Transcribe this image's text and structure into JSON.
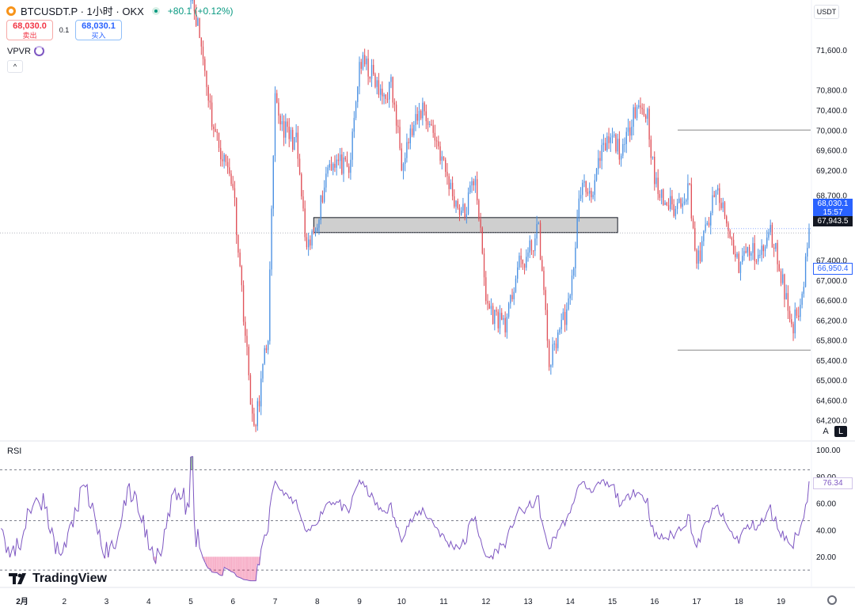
{
  "header": {
    "symbol": "BTCUSDT.P · 1小时 · OKX",
    "change": "+80.1 (+0.12%)",
    "sell": {
      "price": "68,030.0",
      "label": "卖出"
    },
    "spread": "0.1",
    "buy": {
      "price": "68,030.1",
      "label": "买入"
    },
    "indicator": "VPVR",
    "currency": "USDT"
  },
  "controls": {
    "collapse": "^",
    "auto": "A",
    "log": "L"
  },
  "rsi_panel": {
    "title": "RSI"
  },
  "branding": {
    "name": "TradingView"
  },
  "colors": {
    "up": "#4a90e2",
    "down": "#e0525a",
    "rsi_line": "#7e57c2"
  },
  "tags": {
    "last_price": "68,030.1",
    "countdown": "15:57",
    "crosshair": "67,943.5",
    "vp_line": "66,950.4",
    "rsi_value": "76.34"
  },
  "chart_data": [
    {
      "type": "candlestick",
      "title": "BTCUSDT.P · 1小时 · OKX",
      "x_tick_labels": [
        "2月",
        "2",
        "3",
        "4",
        "5",
        "6",
        "7",
        "8",
        "9",
        "10",
        "11",
        "12",
        "13",
        "14",
        "15",
        "16",
        "17",
        "18",
        "19"
      ],
      "ylim": [
        63800,
        72600
      ],
      "y_tick_labels": [
        "71,600.0",
        "70,800.0",
        "70,400.0",
        "70,000.0",
        "69,600.0",
        "69,200.0",
        "68,700.0",
        "67,400.0",
        "67,000.0",
        "66,600.0",
        "66,200.0",
        "65,800.0",
        "65,400.0",
        "65,000.0",
        "64,600.0",
        "64,200.0"
      ],
      "grid": false,
      "anchors": [
        {
          "date": "2026-02-05T00:00",
          "price": 72800
        },
        {
          "date": "2026-02-05T12:00",
          "price": 70300
        },
        {
          "date": "2026-02-06T00:00",
          "price": 68800
        },
        {
          "date": "2026-02-06T12:00",
          "price": 64000
        },
        {
          "date": "2026-02-06T20:00",
          "price": 65800
        },
        {
          "date": "2026-02-07T00:00",
          "price": 70500
        },
        {
          "date": "2026-02-07T12:00",
          "price": 69700
        },
        {
          "date": "2026-02-07T18:00",
          "price": 67400
        },
        {
          "date": "2026-02-08T06:00",
          "price": 69300
        },
        {
          "date": "2026-02-08T18:00",
          "price": 69200
        },
        {
          "date": "2026-02-09T00:00",
          "price": 71400
        },
        {
          "date": "2026-02-09T12:00",
          "price": 70700
        },
        {
          "date": "2026-02-09T18:00",
          "price": 71000
        },
        {
          "date": "2026-02-10T00:00",
          "price": 69300
        },
        {
          "date": "2026-02-10T12:00",
          "price": 70600
        },
        {
          "date": "2026-02-11T00:00",
          "price": 69200
        },
        {
          "date": "2026-02-11T12:00",
          "price": 68300
        },
        {
          "date": "2026-02-11T18:00",
          "price": 69000
        },
        {
          "date": "2026-02-12T00:00",
          "price": 66700
        },
        {
          "date": "2026-02-12T06:00",
          "price": 66300
        },
        {
          "date": "2026-02-12T12:00",
          "price": 66000
        },
        {
          "date": "2026-02-12T18:00",
          "price": 67300
        },
        {
          "date": "2026-02-13T00:00",
          "price": 67600
        },
        {
          "date": "2026-02-13T06:00",
          "price": 67900
        },
        {
          "date": "2026-02-13T12:00",
          "price": 65300
        },
        {
          "date": "2026-02-13T18:00",
          "price": 66200
        },
        {
          "date": "2026-02-14T00:00",
          "price": 66500
        },
        {
          "date": "2026-02-14T06:00",
          "price": 68800
        },
        {
          "date": "2026-02-14T12:00",
          "price": 68900
        },
        {
          "date": "2026-02-14T18:00",
          "price": 69500
        },
        {
          "date": "2026-02-15T00:00",
          "price": 69700
        },
        {
          "date": "2026-02-15T06:00",
          "price": 69600
        },
        {
          "date": "2026-02-15T12:00",
          "price": 70500
        },
        {
          "date": "2026-02-15T20:00",
          "price": 70200
        },
        {
          "date": "2026-02-16T00:00",
          "price": 69000
        },
        {
          "date": "2026-02-16T12:00",
          "price": 68300
        },
        {
          "date": "2026-02-16T20:00",
          "price": 68900
        },
        {
          "date": "2026-02-17T00:00",
          "price": 67400
        },
        {
          "date": "2026-02-17T12:00",
          "price": 68700
        },
        {
          "date": "2026-02-17T18:00",
          "price": 68100
        },
        {
          "date": "2026-02-18T00:00",
          "price": 67300
        },
        {
          "date": "2026-02-18T12:00",
          "price": 67600
        },
        {
          "date": "2026-02-18T18:00",
          "price": 68000
        },
        {
          "date": "2026-02-19T00:00",
          "price": 67000
        },
        {
          "date": "2026-02-19T06:00",
          "price": 66100
        },
        {
          "date": "2026-02-19T12:00",
          "price": 66800
        },
        {
          "date": "2026-02-19T16:00",
          "price": 68030
        }
      ],
      "drawings": {
        "resistance_line": 70000,
        "support_line": 65600,
        "zone": [
          67950,
          68250
        ]
      }
    },
    {
      "type": "line",
      "title": "RSI",
      "ylim": [
        0,
        100
      ],
      "y_tick_labels": [
        "100.00",
        "80.00",
        "60.00",
        "40.00",
        "20.00"
      ],
      "levels": [
        85,
        47,
        10
      ],
      "last_value": 76.34
    }
  ]
}
